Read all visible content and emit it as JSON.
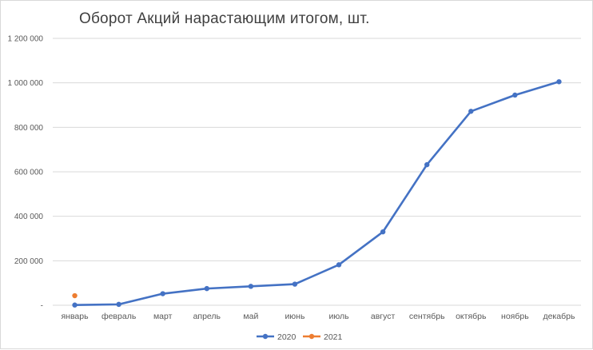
{
  "chart_data": {
    "type": "line",
    "title": "Оборот Акций нарастающим итогом, шт.",
    "xlabel": "",
    "ylabel": "",
    "categories": [
      "январь",
      "февраль",
      "март",
      "апрель",
      "май",
      "июнь",
      "июль",
      "август",
      "сентябрь",
      "октябрь",
      "ноябрь",
      "декабрь"
    ],
    "ylim": [
      0,
      1200000
    ],
    "yticks": [
      0,
      200000,
      400000,
      600000,
      800000,
      1000000,
      1200000
    ],
    "ytick_labels": [
      "-",
      "200 000",
      "400 000",
      "600 000",
      "800 000",
      "1 000 000",
      "1 200 000"
    ],
    "grid": true,
    "legend_position": "bottom",
    "series": [
      {
        "name": "2020",
        "color": "#4472c4",
        "values": [
          1000,
          4000,
          52000,
          75000,
          85000,
          95000,
          182000,
          330000,
          632000,
          872000,
          945000,
          1005000
        ]
      },
      {
        "name": "2021",
        "color": "#ed7d31",
        "values": [
          43000,
          null,
          null,
          null,
          null,
          null,
          null,
          null,
          null,
          null,
          null,
          null
        ]
      }
    ]
  }
}
